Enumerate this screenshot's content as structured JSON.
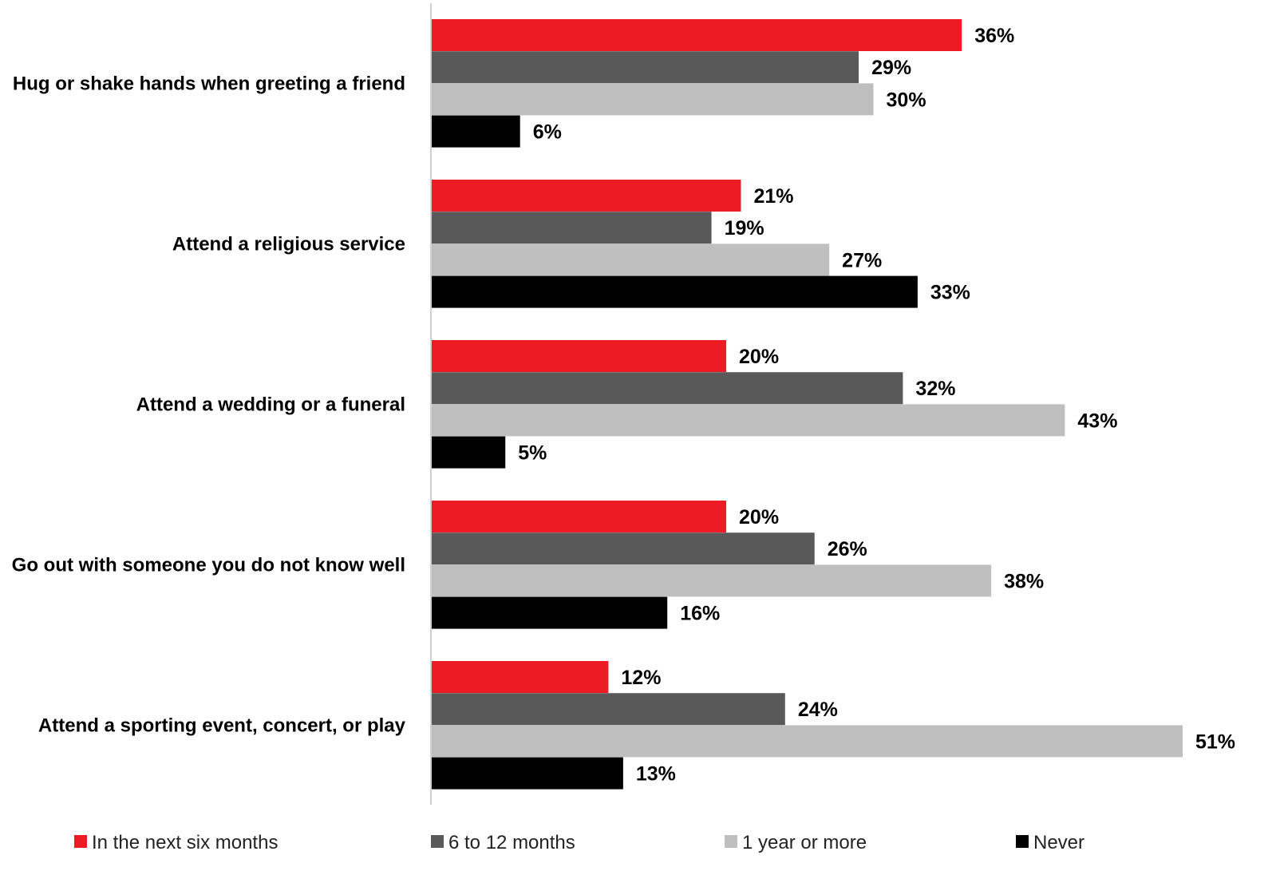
{
  "chart_data": {
    "type": "bar",
    "orientation": "horizontal",
    "categories": [
      "Hug or shake hands when greeting a friend",
      "Attend a religious service",
      "Attend a wedding or a funeral",
      "Go out with someone you do not know well",
      "Attend a sporting event, concert, or play"
    ],
    "series": [
      {
        "name": "In the next six months",
        "color": "#ed1c24",
        "values": [
          36,
          21,
          20,
          20,
          12
        ]
      },
      {
        "name": "6 to 12 months",
        "color": "#595959",
        "values": [
          29,
          19,
          32,
          26,
          24
        ]
      },
      {
        "name": "1 year or more",
        "color": "#bfbfbf",
        "values": [
          30,
          27,
          43,
          38,
          51
        ]
      },
      {
        "name": "Never",
        "color": "#000000",
        "values": [
          6,
          33,
          5,
          16,
          13
        ]
      }
    ],
    "value_suffix": "%",
    "title": "",
    "xlabel": "",
    "ylabel": "",
    "xlim": [
      0,
      51
    ],
    "grid": false,
    "legend_position": "bottom",
    "data_labels": true
  }
}
